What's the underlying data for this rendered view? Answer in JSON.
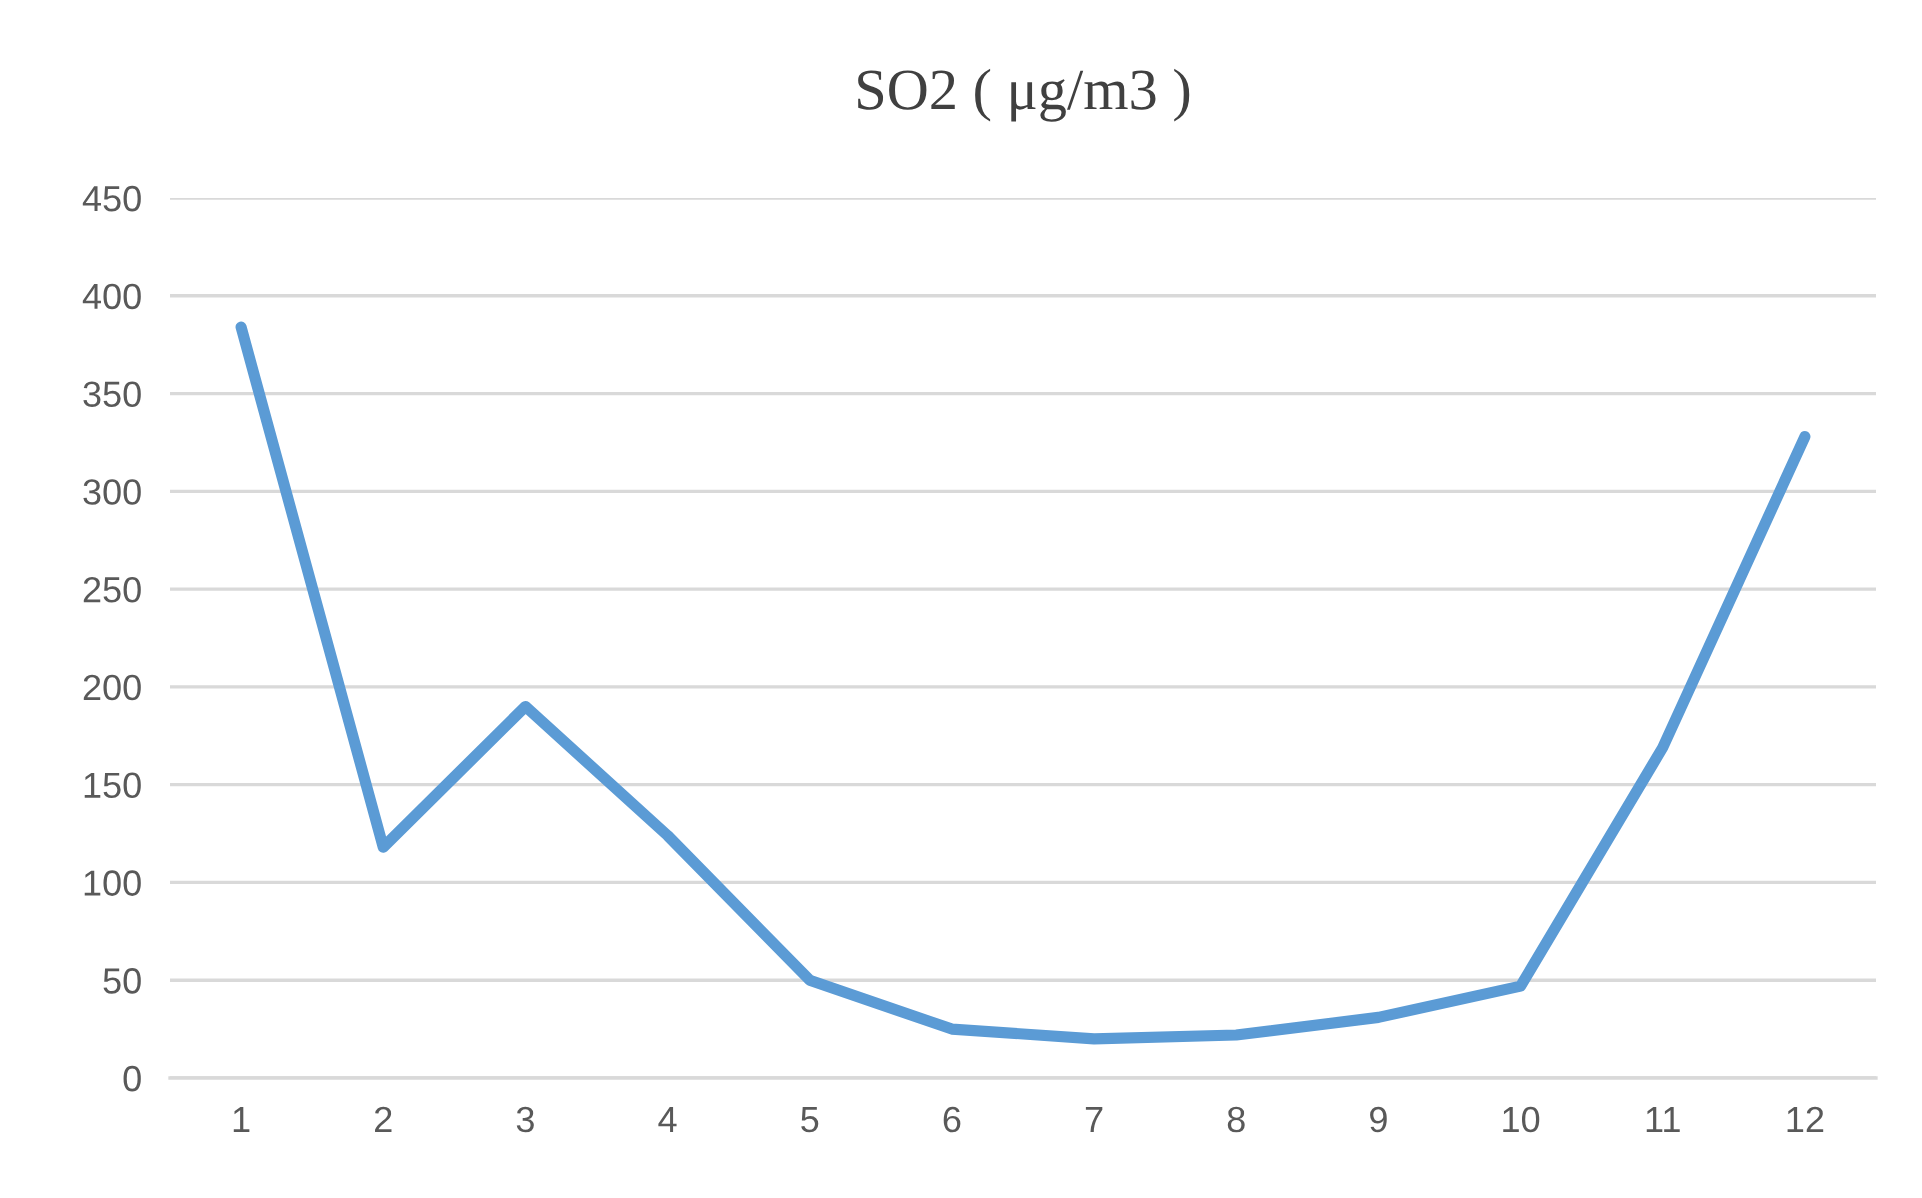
{
  "chart_data": {
    "type": "line",
    "title": "SO2 ( μg/m3 )",
    "categories": [
      "1",
      "2",
      "3",
      "4",
      "5",
      "6",
      "7",
      "8",
      "9",
      "10",
      "11",
      "12"
    ],
    "series": [
      {
        "color": "#5b9bd5",
        "values": [
          384,
          118,
          190,
          124,
          50,
          25,
          20,
          22,
          31,
          47,
          169,
          328
        ]
      }
    ],
    "ylim": [
      0,
      450
    ],
    "yticks": [
      0,
      50,
      100,
      150,
      200,
      250,
      300,
      350,
      400,
      450
    ],
    "grid": "y",
    "marker": "none",
    "line_style": "solid"
  }
}
